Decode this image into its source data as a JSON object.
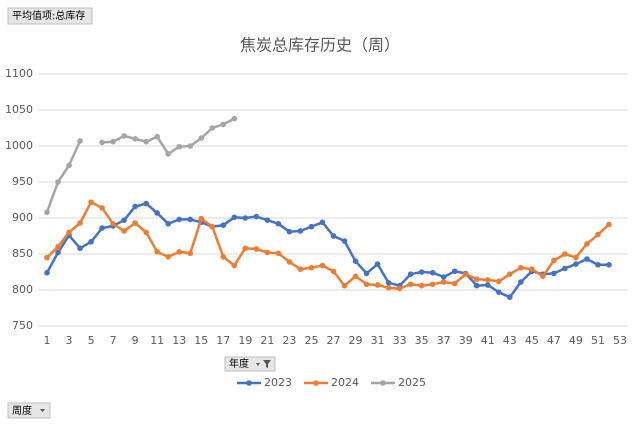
{
  "chart_data": {
    "type": "line",
    "title": "焦炭总库存历史（周）",
    "field_buttons": {
      "value_field": "平均值项:总库存",
      "legend_field": "年度",
      "axis_field": "周度"
    },
    "categories": [
      1,
      null,
      3,
      null,
      5,
      null,
      7,
      null,
      9,
      null,
      11,
      null,
      13,
      null,
      15,
      null,
      17,
      null,
      19,
      null,
      21,
      null,
      23,
      null,
      25,
      null,
      27,
      null,
      29,
      null,
      31,
      null,
      33,
      null,
      35,
      null,
      37,
      null,
      39,
      null,
      41,
      null,
      43,
      null,
      45,
      null,
      47,
      null,
      49,
      null,
      51,
      null,
      53
    ],
    "series": [
      {
        "name": "2023",
        "color": "#4472c4",
        "values": [
          824,
          852,
          876,
          858,
          867,
          886,
          889,
          897,
          916,
          920,
          907,
          892,
          898,
          898,
          894,
          888,
          890,
          901,
          900,
          902,
          897,
          892,
          881,
          882,
          888,
          894,
          875,
          868,
          840,
          823,
          836,
          810,
          806,
          822,
          825,
          824,
          818,
          826,
          823,
          806,
          807,
          797,
          790,
          811,
          826,
          822,
          823,
          830,
          836,
          843,
          835,
          835,
          null
        ]
      },
      {
        "name": "2024",
        "color": "#ed7d31",
        "values": [
          845,
          860,
          880,
          893,
          922,
          914,
          892,
          882,
          893,
          880,
          853,
          846,
          853,
          851,
          899,
          888,
          846,
          834,
          858,
          857,
          852,
          851,
          839,
          829,
          831,
          834,
          826,
          806,
          819,
          808,
          807,
          803,
          802,
          808,
          806,
          808,
          811,
          809,
          822,
          815,
          814,
          812,
          822,
          831,
          829,
          819,
          841,
          850,
          845,
          864,
          877,
          891,
          null
        ]
      },
      {
        "name": "2025",
        "color": "#a5a5a5",
        "values": [
          908,
          950,
          973,
          1007,
          null,
          1005,
          1006,
          1014,
          1010,
          1006,
          1013,
          989,
          999,
          1000,
          1011,
          1025,
          1030,
          1038,
          null,
          null,
          null,
          null,
          null,
          null,
          null,
          null,
          null,
          null,
          null,
          null,
          null,
          null,
          null,
          null,
          null,
          null,
          null,
          null,
          null,
          null,
          null,
          null,
          null,
          null,
          null,
          null,
          null,
          null,
          null,
          null,
          null,
          null,
          null
        ]
      }
    ],
    "ylim": [
      750,
      1100
    ],
    "yticks": [
      750,
      800,
      850,
      900,
      950,
      1000,
      1050,
      1100
    ],
    "grid": true,
    "legend": "bottom"
  }
}
